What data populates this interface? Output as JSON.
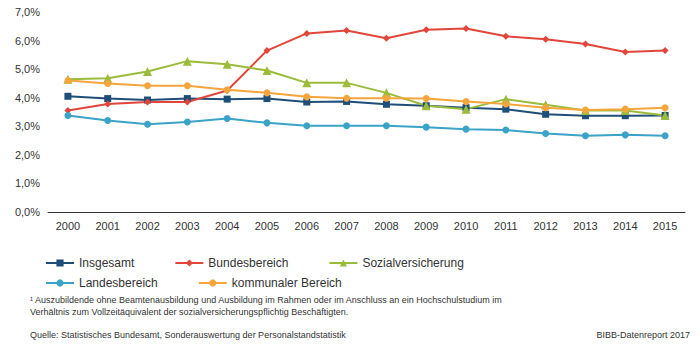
{
  "chart_data": {
    "type": "line",
    "categories": [
      "2000",
      "2001",
      "2002",
      "2003",
      "2004",
      "2005",
      "2006",
      "2007",
      "2008",
      "2009",
      "2010",
      "2011",
      "2012",
      "2013",
      "2014",
      "2015"
    ],
    "series": [
      {
        "name": "Insgesamt",
        "color": "#1f4e79",
        "marker": "rect",
        "values": [
          4.05,
          3.97,
          3.92,
          3.97,
          3.95,
          3.97,
          3.85,
          3.87,
          3.77,
          3.72,
          3.65,
          3.6,
          3.42,
          3.37,
          3.37,
          3.38
        ]
      },
      {
        "name": "Bundesbereich",
        "color": "#e2463a",
        "marker": "diamond",
        "values": [
          3.55,
          3.78,
          3.85,
          3.85,
          4.25,
          5.65,
          6.25,
          6.35,
          6.08,
          6.38,
          6.42,
          6.15,
          6.05,
          5.88,
          5.6,
          5.65
        ]
      },
      {
        "name": "Sozialversicherung",
        "color": "#9bbb3b",
        "marker": "triangle",
        "values": [
          4.65,
          4.68,
          4.92,
          5.28,
          5.17,
          4.95,
          4.52,
          4.52,
          4.17,
          3.72,
          3.6,
          3.95,
          3.75,
          3.55,
          3.55,
          3.38
        ]
      },
      {
        "name": "Landesbereich",
        "color": "#3aa3c7",
        "marker": "circle",
        "values": [
          3.38,
          3.2,
          3.07,
          3.15,
          3.27,
          3.12,
          3.02,
          3.02,
          3.02,
          2.97,
          2.9,
          2.87,
          2.75,
          2.67,
          2.7,
          2.67
        ]
      },
      {
        "name": "kommunaler Bereich",
        "color": "#f5a53c",
        "marker": "circle",
        "values": [
          4.6,
          4.5,
          4.42,
          4.42,
          4.28,
          4.17,
          4.03,
          3.98,
          3.98,
          3.97,
          3.87,
          3.78,
          3.65,
          3.57,
          3.6,
          3.65
        ]
      }
    ],
    "ylim": [
      0,
      7
    ],
    "yticks": [
      {
        "value": 0,
        "label": "0,0%"
      },
      {
        "value": 1,
        "label": "1,0%"
      },
      {
        "value": 2,
        "label": "2,0%"
      },
      {
        "value": 3,
        "label": "3,0%"
      },
      {
        "value": 4,
        "label": "4,0%"
      },
      {
        "value": 5,
        "label": "5,0%"
      },
      {
        "value": 6,
        "label": "6,0%"
      },
      {
        "value": 7,
        "label": "7,0%"
      }
    ],
    "grid": false,
    "legend": "bottom",
    "footnote": "¹ Auszubildende ohne Beamtenausbildung und Ausbildung im Rahmen oder im Anschluss an ein Hochschulstudium im Verhältnis zum Vollzeitäquivalent der sozialversicherungspflichtig Beschäftigten.",
    "source": "Quelle: Statistisches Bundesamt, Sonderauswertung der Personalstandstatistik",
    "credit": "BIBB-Datenreport 2017"
  }
}
